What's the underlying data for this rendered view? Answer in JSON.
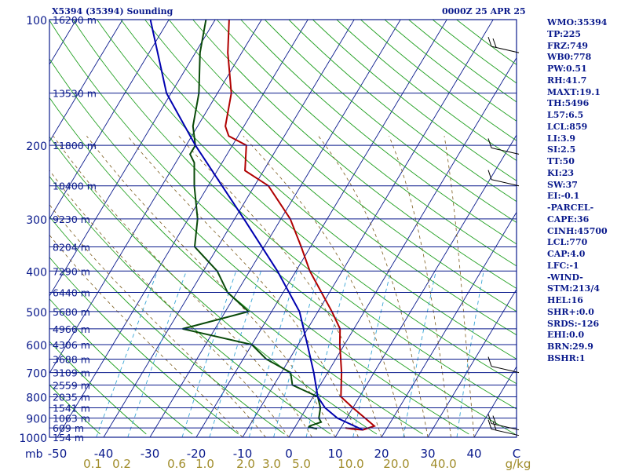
{
  "header": {
    "station": "X5394 (35394) Sounding",
    "valid": "0000Z 25 APR 25"
  },
  "indices": [
    "WMO:35394",
    "TP:225",
    "FRZ:749",
    "WB0:778",
    "PW:0.51",
    "RH:41.7",
    "MAXT:19.1",
    "TH:5496",
    "L57:6.5",
    "LCL:859",
    "LI:3.9",
    "SI:2.5",
    "TT:50",
    "KI:23",
    "SW:37",
    "EI:-0.1",
    "-PARCEL-",
    "CAPE:36",
    "CINH:45700",
    "LCL:770",
    "CAP:4.0",
    "LFC:-1",
    "-WIND-",
    "STM:213/4",
    "HEL:16",
    "SHR+:0.0",
    "SRDS:-126",
    "EHI:0.0",
    "BRN:29.9",
    "BSHR:1"
  ],
  "colors": {
    "isobar": "#0a1a8c",
    "isotherm": "#0a1a8c",
    "dry_adiabat": "#22a022",
    "mixing_ratio": "#3aa6d6",
    "moist_adiabat": "#7a5a1a",
    "temperature": "#b00000",
    "dewpoint": "#0a4a0a",
    "parcel": "#0000b0",
    "wind": "#000000",
    "mixing_label": "#a08c2a",
    "temp_label": "#0a1a8c"
  },
  "chart_data": {
    "type": "skew-t",
    "title": "X5394 (35394) Sounding",
    "subtitle": "0000Z 25 APR 25",
    "x_unit": "C",
    "y_unit": "mb",
    "pressure_ticks": [
      100,
      200,
      300,
      400,
      500,
      600,
      700,
      800,
      900,
      1000
    ],
    "temperature_ticks": [
      -50,
      -40,
      -30,
      -20,
      -10,
      0,
      10,
      20,
      30,
      40
    ],
    "mixing_ratio_labels": [
      "0.1",
      "0.2",
      "0.6",
      "1.0",
      "2.0",
      "3.0",
      "5.0",
      "10.0",
      "20.0",
      "40.0"
    ],
    "mixing_ratio_unit": "g/kg",
    "height_labels": [
      {
        "p": 100,
        "text": "16200 m"
      },
      {
        "p": 150,
        "text": "13530 m"
      },
      {
        "p": 200,
        "text": "11800 m"
      },
      {
        "p": 250,
        "text": "10400 m"
      },
      {
        "p": 300,
        "text": "9230 m"
      },
      {
        "p": 350,
        "text": "8204 m"
      },
      {
        "p": 400,
        "text": "7290 m"
      },
      {
        "p": 450,
        "text": "6440 m"
      },
      {
        "p": 500,
        "text": "5680 m"
      },
      {
        "p": 550,
        "text": "4966 m"
      },
      {
        "p": 600,
        "text": "4306 m"
      },
      {
        "p": 650,
        "text": "3688 m"
      },
      {
        "p": 700,
        "text": "3109 m"
      },
      {
        "p": 750,
        "text": "2559 m"
      },
      {
        "p": 800,
        "text": "2035 m"
      },
      {
        "p": 850,
        "text": "1541 m"
      },
      {
        "p": 900,
        "text": "1063 m"
      },
      {
        "p": 950,
        "text": "609 m"
      },
      {
        "p": 1000,
        "text": "154 m"
      }
    ],
    "series": [
      {
        "kind": "temperature",
        "points": [
          [
            950,
            11
          ],
          [
            955,
            12.5
          ],
          [
            960,
            15
          ],
          [
            940,
            17
          ],
          [
            900,
            14
          ],
          [
            850,
            10
          ],
          [
            800,
            6
          ],
          [
            700,
            3
          ],
          [
            600,
            -1
          ],
          [
            550,
            -3
          ],
          [
            500,
            -7
          ],
          [
            400,
            -17
          ],
          [
            350,
            -22
          ],
          [
            300,
            -28
          ],
          [
            250,
            -37
          ],
          [
            230,
            -44
          ],
          [
            200,
            -47
          ],
          [
            190,
            -52
          ],
          [
            180,
            -54
          ],
          [
            150,
            -57
          ],
          [
            120,
            -63
          ],
          [
            100,
            -67
          ]
        ]
      },
      {
        "kind": "dewpoint",
        "points": [
          [
            955,
            5
          ],
          [
            950,
            4
          ],
          [
            945,
            3
          ],
          [
            940,
            3
          ],
          [
            920,
            5
          ],
          [
            900,
            4
          ],
          [
            850,
            3
          ],
          [
            800,
            1
          ],
          [
            750,
            -6
          ],
          [
            700,
            -8
          ],
          [
            650,
            -15
          ],
          [
            600,
            -20
          ],
          [
            550,
            -37
          ],
          [
            500,
            -25
          ],
          [
            450,
            -32
          ],
          [
            400,
            -37
          ],
          [
            350,
            -45
          ],
          [
            300,
            -48
          ],
          [
            250,
            -53
          ],
          [
            220,
            -56
          ],
          [
            210,
            -58
          ],
          [
            200,
            -58
          ],
          [
            180,
            -61
          ],
          [
            150,
            -64
          ],
          [
            120,
            -69
          ],
          [
            100,
            -72
          ]
        ]
      },
      {
        "kind": "parcel",
        "points": [
          [
            960,
            15
          ],
          [
            900,
            8
          ],
          [
            850,
            4
          ],
          [
            800,
            1
          ],
          [
            700,
            -3
          ],
          [
            600,
            -8
          ],
          [
            500,
            -14
          ],
          [
            400,
            -24
          ],
          [
            300,
            -38
          ],
          [
            250,
            -47
          ],
          [
            200,
            -58
          ],
          [
            150,
            -71
          ],
          [
            100,
            -84
          ]
        ]
      }
    ],
    "wind_barbs": [
      {
        "p": 120,
        "shape": "two-barbs"
      },
      {
        "p": 210,
        "shape": "flag"
      },
      {
        "p": 250,
        "shape": "one-barb"
      },
      {
        "p": 700,
        "shape": "barb-left"
      },
      {
        "p": 960,
        "shape": "barbs"
      },
      {
        "p": 990,
        "shape": "barbs"
      }
    ]
  }
}
